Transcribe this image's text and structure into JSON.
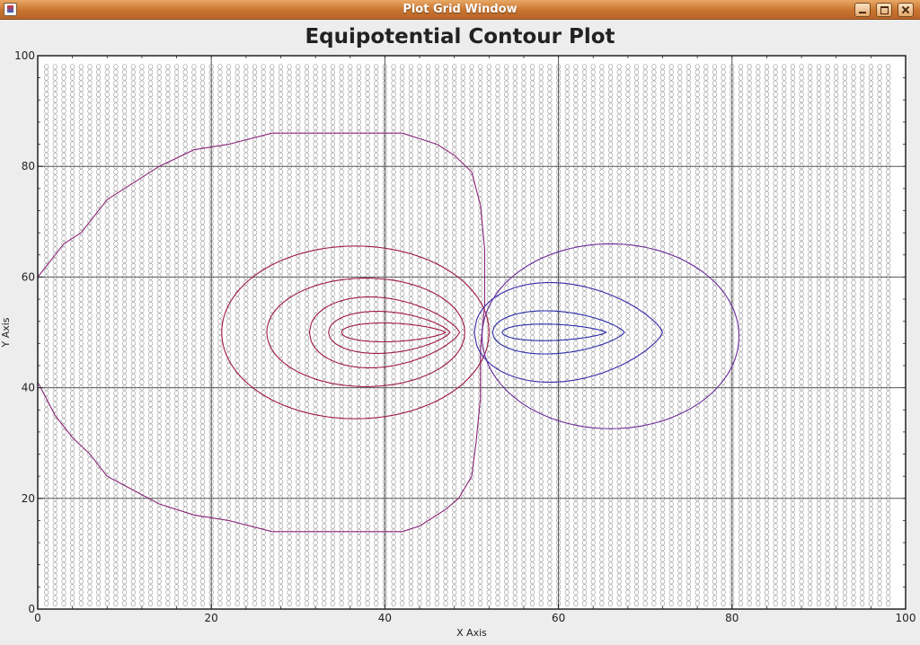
{
  "window": {
    "title": "Plot Grid Window"
  },
  "chart_data": {
    "type": "line",
    "title": "Equipotential Contour Plot",
    "xlabel": "X Axis",
    "ylabel": "Y Axis",
    "xlim": [
      0,
      100
    ],
    "ylim": [
      0,
      100
    ],
    "x_ticks": [
      0,
      20,
      40,
      60,
      80,
      100
    ],
    "y_ticks": [
      0,
      20,
      40,
      60,
      80,
      100
    ],
    "grid": true,
    "grid_points": {
      "x_start": 1,
      "x_end": 98,
      "x_step": 1,
      "y_start": 1,
      "y_end": 98,
      "y_step": 1
    },
    "colors": {
      "positive": "#a01848",
      "negative": "#2a2aa8",
      "outer": "#8a2478",
      "grid_marker": "#9a9a9a"
    },
    "series": [
      {
        "kind": "closed",
        "color": "#8a2478",
        "points": [
          [
            0,
            60
          ],
          [
            1,
            62
          ],
          [
            2,
            64
          ],
          [
            3,
            66
          ],
          [
            5,
            68
          ],
          [
            8,
            74
          ],
          [
            10,
            76
          ],
          [
            14,
            80
          ],
          [
            18,
            83
          ],
          [
            22,
            84
          ],
          [
            27,
            86
          ],
          [
            42,
            86
          ],
          [
            44,
            85
          ],
          [
            46,
            84
          ],
          [
            48,
            82
          ],
          [
            50,
            79
          ],
          [
            51,
            73
          ],
          [
            51.5,
            65
          ],
          [
            51.5,
            55
          ],
          [
            51,
            47
          ],
          [
            51,
            38
          ],
          [
            50.5,
            30
          ],
          [
            50,
            24
          ],
          [
            48.5,
            20
          ],
          [
            47,
            18
          ],
          [
            44,
            15
          ],
          [
            42,
            14
          ],
          [
            27,
            14
          ],
          [
            22,
            16
          ],
          [
            18,
            17
          ],
          [
            14,
            19
          ],
          [
            8,
            24
          ],
          [
            6,
            28
          ],
          [
            4,
            31
          ],
          [
            2,
            35
          ],
          [
            1,
            38
          ],
          [
            0,
            41
          ]
        ]
      },
      {
        "kind": "ellipse",
        "color": "#a01848",
        "cx": 36.6,
        "cy": 50,
        "rx": 15.4,
        "ry": 15.6
      },
      {
        "kind": "ellipse",
        "color": "#a01848",
        "cx": 37.8,
        "cy": 50,
        "rx": 11.4,
        "ry": 9.8
      },
      {
        "kind": "lens",
        "color": "#a01848",
        "x0": 31.3,
        "x1": 48.6,
        "cx": 40,
        "cy": 50,
        "ry": 6.4
      },
      {
        "kind": "lens",
        "color": "#a01848",
        "x0": 33.5,
        "x1": 47.5,
        "cx": 40,
        "cy": 50,
        "ry": 3.8
      },
      {
        "kind": "lens",
        "color": "#a01848",
        "x0": 35.0,
        "x1": 47.0,
        "cx": 40,
        "cy": 50,
        "ry": 1.7
      },
      {
        "kind": "ellipse",
        "color": "#6a2a98",
        "cx": 66,
        "cy": 49.3,
        "rx": 14.8,
        "ry": 16.7
      },
      {
        "kind": "lens",
        "color": "#3a2aa8",
        "x0": 50.3,
        "x1": 72.0,
        "cx": 62.6,
        "cy": 50,
        "ry": 9
      },
      {
        "kind": "lens",
        "color": "#2a2aa8",
        "x0": 52.4,
        "x1": 67.6,
        "cx": 61,
        "cy": 50,
        "ry": 3.9
      },
      {
        "kind": "lens",
        "color": "#2a2aa8",
        "x0": 53.5,
        "x1": 65.5,
        "cx": 60.5,
        "cy": 50,
        "ry": 1.5
      }
    ]
  }
}
